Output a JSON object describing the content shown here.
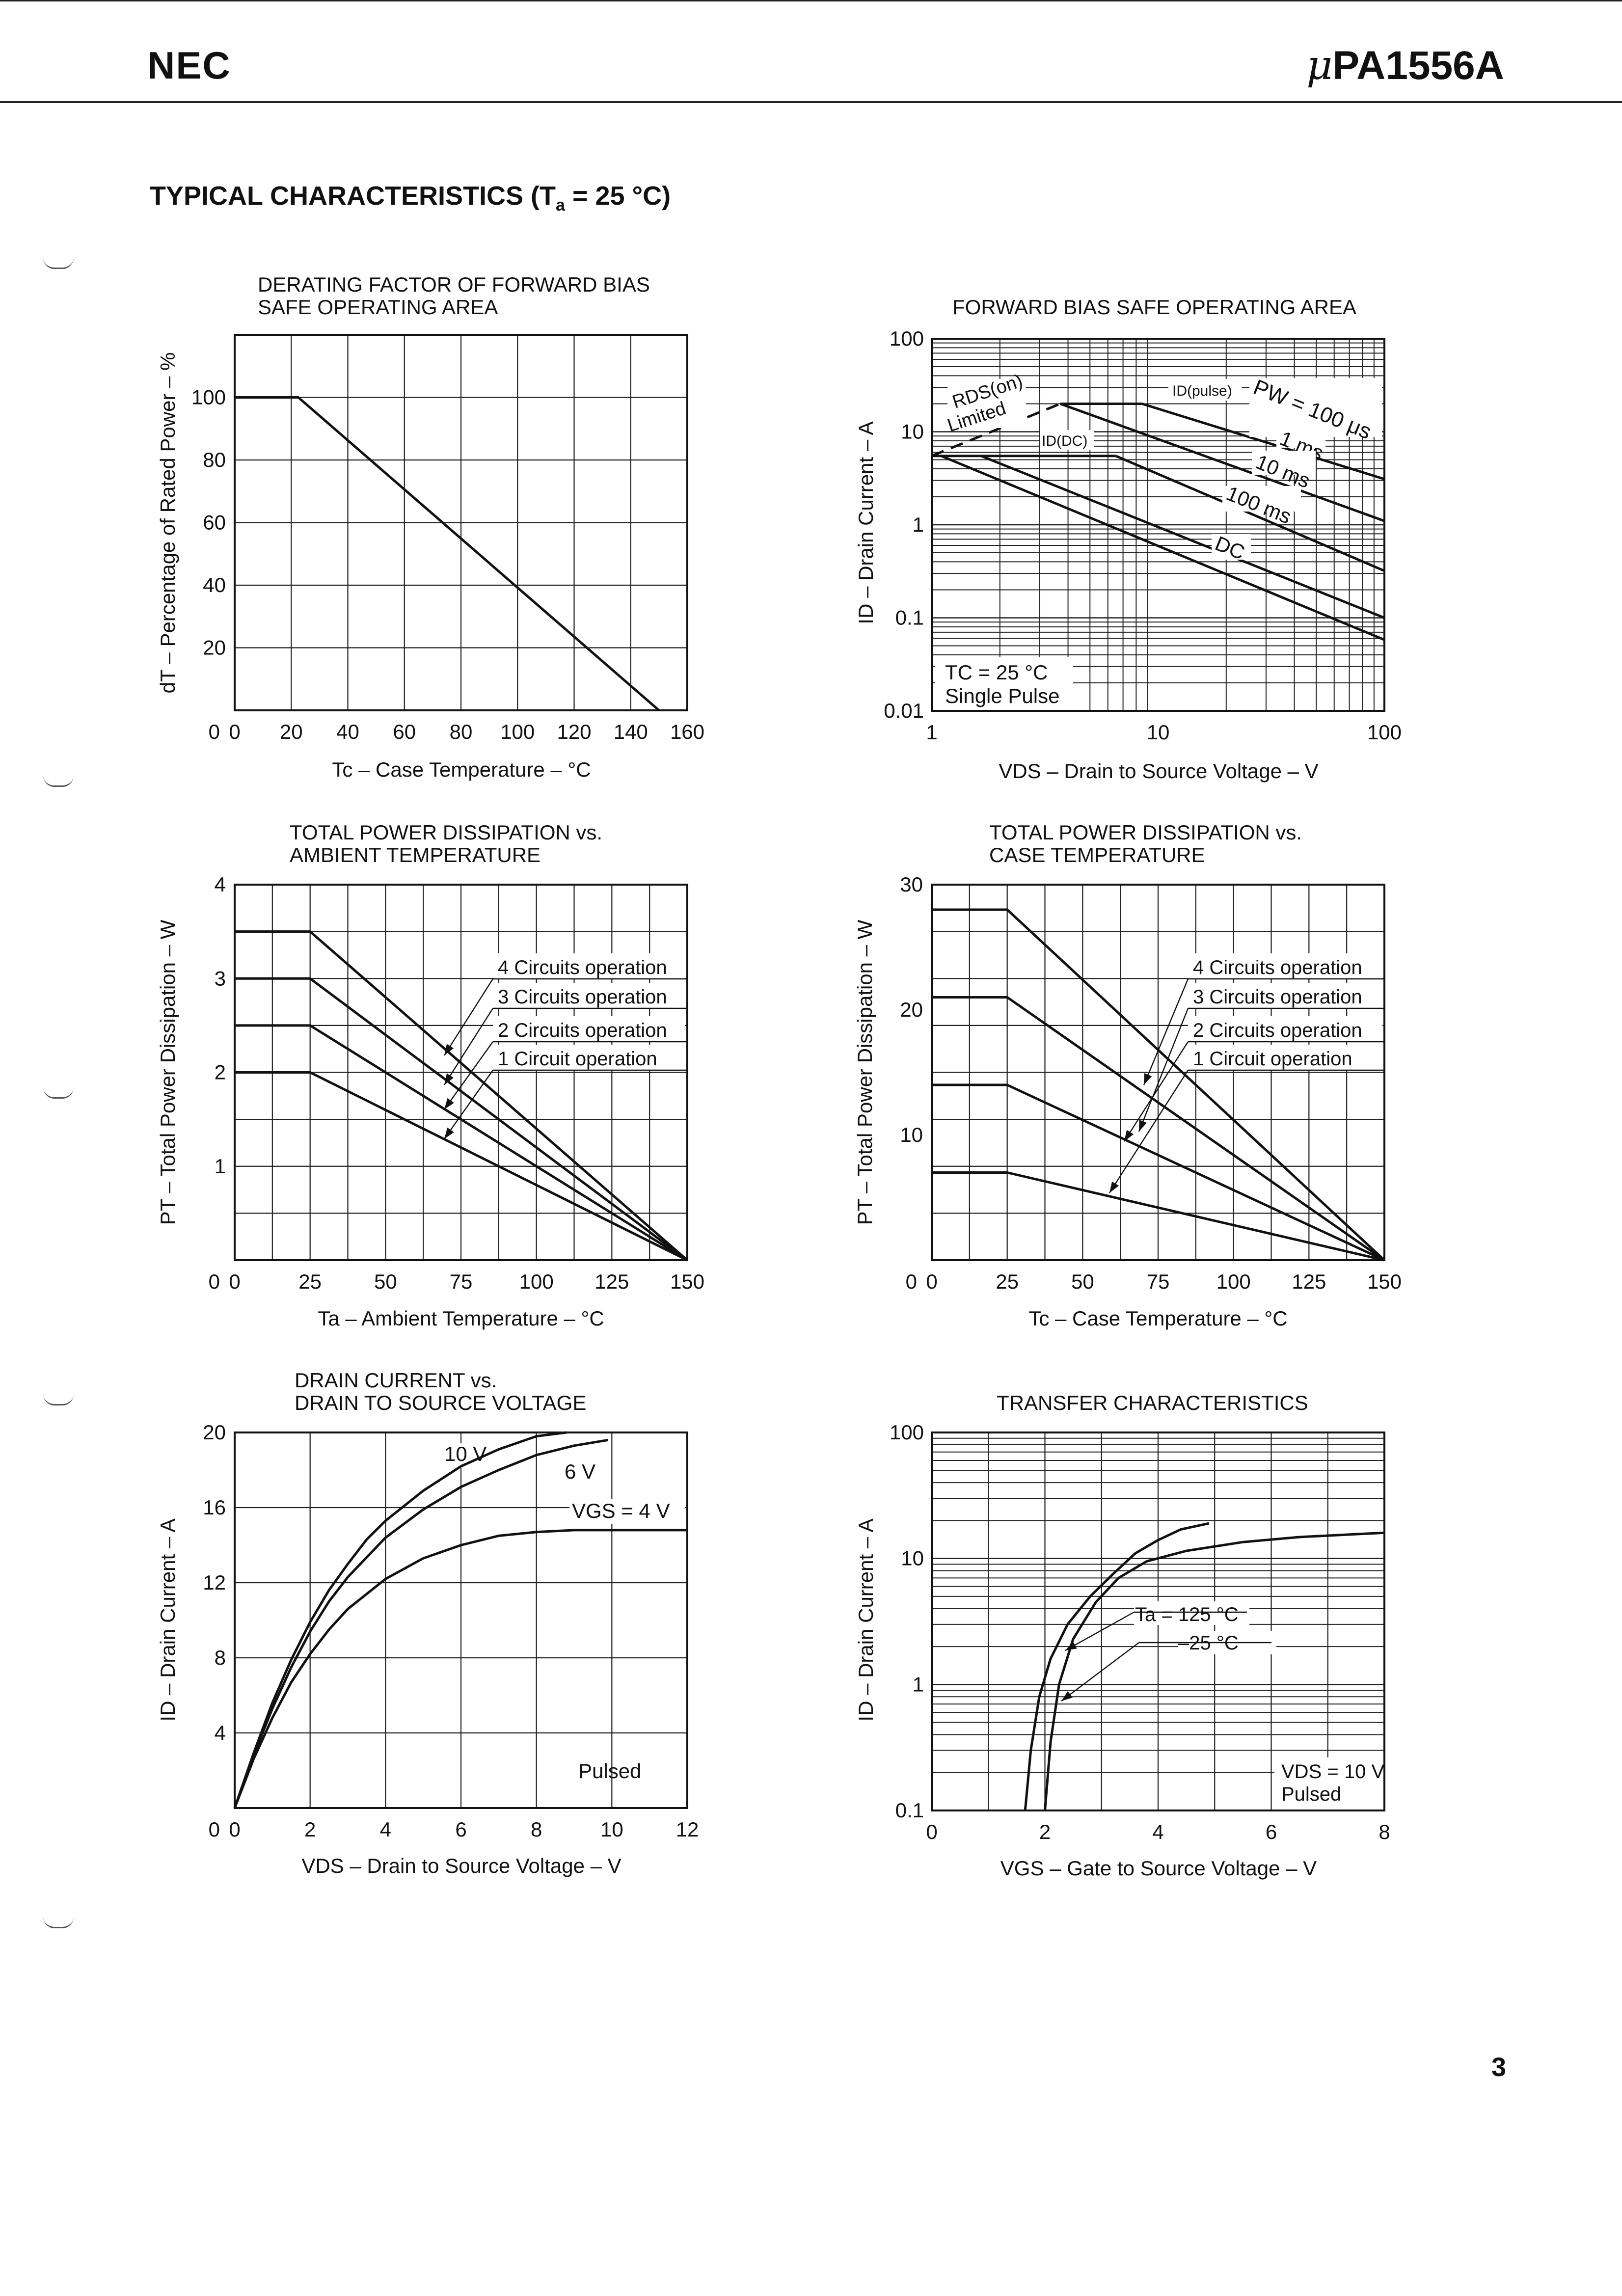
{
  "header": {
    "brand": "NEC",
    "part_prefix": "μ",
    "part_number": "PA1556A"
  },
  "section_title": {
    "main": "TYPICAL CHARACTERISTICS (T",
    "sub": "a",
    "end": " = 25 °C)"
  },
  "page_number": "3",
  "chart_data": [
    {
      "id": "derating",
      "type": "line",
      "title": [
        "DERATING FACTOR OF FORWARD BIAS",
        "SAFE OPERATING AREA"
      ],
      "xlabel": "Tc – Case Temperature – °C",
      "ylabel": "dT – Percentage of Rated Power – %",
      "xlim": [
        0,
        160
      ],
      "ylim": [
        0,
        120
      ],
      "xticks": [
        0,
        20,
        40,
        60,
        80,
        100,
        120,
        140,
        160
      ],
      "xtick_labels": [
        "0",
        "20",
        "40",
        "60",
        "80",
        "100",
        "120",
        "140",
        "160"
      ],
      "yticks": [
        20,
        40,
        60,
        80,
        100
      ],
      "ytick_labels": [
        "20",
        "40",
        "60",
        "80",
        "100"
      ],
      "series": [
        {
          "name": "Derating",
          "points": [
            [
              0,
              100
            ],
            [
              22.5,
              100
            ],
            [
              150,
              0
            ]
          ]
        }
      ]
    },
    {
      "id": "fbsoa",
      "type": "line",
      "title": [
        "FORWARD BIAS SAFE OPERATING AREA"
      ],
      "xlabel": "VDS – Drain to Source Voltage – V",
      "ylabel": "ID – Drain Current – A",
      "xscale": "log",
      "yscale": "log",
      "xlim": [
        1,
        100
      ],
      "ylim": [
        0.01,
        100
      ],
      "xtick_labels": [
        "1",
        "10",
        "100"
      ],
      "ytick_labels": [
        "0.01",
        "0.1",
        "1",
        "10",
        "100"
      ],
      "series": [
        {
          "name": "ID(pulse)",
          "points": [
            [
              3.7,
              20
            ],
            [
              8.5,
              20
            ]
          ]
        },
        {
          "name": "PW = 100 μs",
          "points": [
            [
              8.5,
              20
            ],
            [
              100,
              3.1
            ]
          ]
        },
        {
          "name": "1 ms",
          "points": [
            [
              3.7,
              20
            ],
            [
              100,
              1.1
            ]
          ]
        },
        {
          "name": "10 ms",
          "points": [
            [
              6.5,
              5.5
            ],
            [
              100,
              0.32
            ]
          ]
        },
        {
          "name": "100 ms",
          "points": [
            [
              1.65,
              5.5
            ],
            [
              100,
              0.1
            ]
          ]
        },
        {
          "name": "DC",
          "points": [
            [
              1.1,
              5.5
            ],
            [
              100,
              0.058
            ]
          ]
        },
        {
          "name": "ID(DC)",
          "points": [
            [
              1,
              5.5
            ],
            [
              6.5,
              5.5
            ]
          ]
        },
        {
          "name": "RDS(on) Limited",
          "points": [
            [
              1,
              5.5
            ],
            [
              3.7,
              20
            ]
          ]
        }
      ],
      "annotations": {
        "rds_main": "RDS(on)",
        "rds_sub": "Limited",
        "id_pulse": "ID(pulse)",
        "id_dc": "ID(DC)",
        "pw": "PW = 100 μs",
        "ms1": "1 ms",
        "ms10": "10 ms",
        "ms100": "100 ms",
        "dc": "DC",
        "cond1": "TC = 25 °C",
        "cond2": "Single Pulse"
      }
    },
    {
      "id": "pt_ambient",
      "type": "line",
      "title": [
        "TOTAL POWER DISSIPATION vs.",
        "AMBIENT TEMPERATURE"
      ],
      "xlabel": "Ta – Ambient Temperature – °C",
      "ylabel": "PT – Total Power Dissipation – W",
      "xlim": [
        0,
        150
      ],
      "ylim": [
        0,
        4
      ],
      "xticks": [
        0,
        25,
        50,
        75,
        100,
        125,
        150
      ],
      "xtick_labels": [
        "0",
        "25",
        "50",
        "75",
        "100",
        "125",
        "150"
      ],
      "yticks": [
        1,
        2,
        3,
        4
      ],
      "ytick_labels": [
        "1",
        "2",
        "3",
        "4"
      ],
      "series": [
        {
          "name": "4 Circuits operation",
          "points": [
            [
              0,
              3.5
            ],
            [
              25,
              3.5
            ],
            [
              150,
              0
            ]
          ]
        },
        {
          "name": "3 Circuits operation",
          "points": [
            [
              0,
              3.0
            ],
            [
              25,
              3.0
            ],
            [
              150,
              0
            ]
          ]
        },
        {
          "name": "2 Circuits operation",
          "points": [
            [
              0,
              2.5
            ],
            [
              25,
              2.5
            ],
            [
              150,
              0
            ]
          ]
        },
        {
          "name": "1 Circuit operation",
          "points": [
            [
              0,
              2.0
            ],
            [
              25,
              2.0
            ],
            [
              150,
              0
            ]
          ]
        }
      ]
    },
    {
      "id": "pt_case",
      "type": "line",
      "title": [
        "TOTAL POWER DISSIPATION vs.",
        "CASE TEMPERATURE"
      ],
      "xlabel": "Tc – Case Temperature – °C",
      "ylabel": "PT – Total Power Dissipation – W",
      "xlim": [
        0,
        150
      ],
      "ylim": [
        0,
        30
      ],
      "xticks": [
        0,
        25,
        50,
        75,
        100,
        125,
        150
      ],
      "xtick_labels": [
        "0",
        "25",
        "50",
        "75",
        "100",
        "125",
        "150"
      ],
      "yticks": [
        10,
        20,
        30
      ],
      "ytick_labels": [
        "10",
        "20",
        "30"
      ],
      "series": [
        {
          "name": "4 Circuits operation",
          "points": [
            [
              0,
              28
            ],
            [
              25,
              28
            ],
            [
              150,
              0
            ]
          ]
        },
        {
          "name": "3 Circuits operation",
          "points": [
            [
              0,
              21
            ],
            [
              25,
              21
            ],
            [
              150,
              0
            ]
          ]
        },
        {
          "name": "2 Circuits operation",
          "points": [
            [
              0,
              14
            ],
            [
              25,
              14
            ],
            [
              150,
              0
            ]
          ]
        },
        {
          "name": "1 Circuit operation",
          "points": [
            [
              0,
              7
            ],
            [
              25,
              7
            ],
            [
              150,
              0
            ]
          ]
        }
      ]
    },
    {
      "id": "id_vds",
      "type": "line",
      "title": [
        "DRAIN CURRENT vs.",
        "DRAIN TO SOURCE VOLTAGE"
      ],
      "xlabel": "VDS – Drain to Source Voltage – V",
      "ylabel": "ID – Drain Current – A",
      "xlim": [
        0,
        12
      ],
      "ylim": [
        0,
        20
      ],
      "xticks": [
        0,
        2,
        4,
        6,
        8,
        10,
        12
      ],
      "xtick_labels": [
        "0",
        "2",
        "4",
        "6",
        "8",
        "10",
        "12"
      ],
      "yticks": [
        4,
        8,
        12,
        16,
        20
      ],
      "ytick_labels": [
        "4",
        "8",
        "12",
        "16",
        "20"
      ],
      "series": [
        {
          "name": "10 V",
          "points": [
            [
              0,
              0
            ],
            [
              0.5,
              2.9
            ],
            [
              1,
              5.6
            ],
            [
              1.5,
              7.9
            ],
            [
              2,
              9.9
            ],
            [
              2.5,
              11.6
            ],
            [
              3,
              13.0
            ],
            [
              3.5,
              14.3
            ],
            [
              4,
              15.3
            ],
            [
              5,
              16.9
            ],
            [
              6,
              18.2
            ],
            [
              7,
              19.1
            ],
            [
              8,
              19.8
            ],
            [
              8.8,
              20
            ]
          ]
        },
        {
          "name": "6 V",
          "points": [
            [
              0,
              0
            ],
            [
              0.5,
              2.8
            ],
            [
              1,
              5.3
            ],
            [
              1.5,
              7.5
            ],
            [
              2,
              9.4
            ],
            [
              2.5,
              11.0
            ],
            [
              3,
              12.3
            ],
            [
              4,
              14.4
            ],
            [
              5,
              15.9
            ],
            [
              6,
              17.1
            ],
            [
              7,
              18.0
            ],
            [
              8,
              18.8
            ],
            [
              9,
              19.3
            ],
            [
              9.9,
              19.6
            ]
          ]
        },
        {
          "name": "VGS = 4 V",
          "points": [
            [
              0,
              0
            ],
            [
              0.5,
              2.6
            ],
            [
              1,
              4.8
            ],
            [
              1.5,
              6.7
            ],
            [
              2,
              8.2
            ],
            [
              2.5,
              9.5
            ],
            [
              3,
              10.6
            ],
            [
              4,
              12.2
            ],
            [
              5,
              13.3
            ],
            [
              6,
              14.0
            ],
            [
              7,
              14.5
            ],
            [
              8,
              14.7
            ],
            [
              9,
              14.8
            ],
            [
              12,
              14.8
            ]
          ]
        }
      ],
      "annotations": {
        "l10": "10 V",
        "l6": "6 V",
        "l4": "VGS = 4 V",
        "note": "Pulsed"
      }
    },
    {
      "id": "transfer",
      "type": "line",
      "title": [
        "TRANSFER CHARACTERISTICS"
      ],
      "xlabel": "VGS – Gate to Source Voltage – V",
      "ylabel": "ID – Drain Current – A",
      "yscale": "log",
      "xlim": [
        0,
        8
      ],
      "ylim": [
        0.1,
        100
      ],
      "xticks": [
        0,
        2,
        4,
        6,
        8
      ],
      "xtick_labels": [
        "0",
        "2",
        "4",
        "6",
        "8"
      ],
      "ytick_labels": [
        "0.1",
        "1",
        "10",
        "100"
      ],
      "series": [
        {
          "name": "Ta = 125 °C",
          "points": [
            [
              1.65,
              0.1
            ],
            [
              1.75,
              0.3
            ],
            [
              1.9,
              0.8
            ],
            [
              2.1,
              1.6
            ],
            [
              2.4,
              3.0
            ],
            [
              2.8,
              5.0
            ],
            [
              3.2,
              7.5
            ],
            [
              3.6,
              11
            ],
            [
              4.0,
              14
            ],
            [
              4.4,
              17
            ],
            [
              4.9,
              19
            ]
          ]
        },
        {
          "name": "–25 °C",
          "points": [
            [
              2.0,
              0.1
            ],
            [
              2.1,
              0.35
            ],
            [
              2.25,
              1.0
            ],
            [
              2.5,
              2.3
            ],
            [
              2.9,
              4.5
            ],
            [
              3.3,
              7.0
            ],
            [
              3.8,
              9.5
            ],
            [
              4.5,
              11.5
            ],
            [
              5.5,
              13.5
            ],
            [
              6.5,
              14.8
            ],
            [
              7.5,
              15.6
            ],
            [
              8.0,
              16
            ]
          ]
        }
      ],
      "annotations": {
        "l125": "Ta = 125 °C",
        "l25": "–25 °C",
        "cond1": "VDS = 10 V",
        "cond2": "Pulsed"
      }
    }
  ]
}
